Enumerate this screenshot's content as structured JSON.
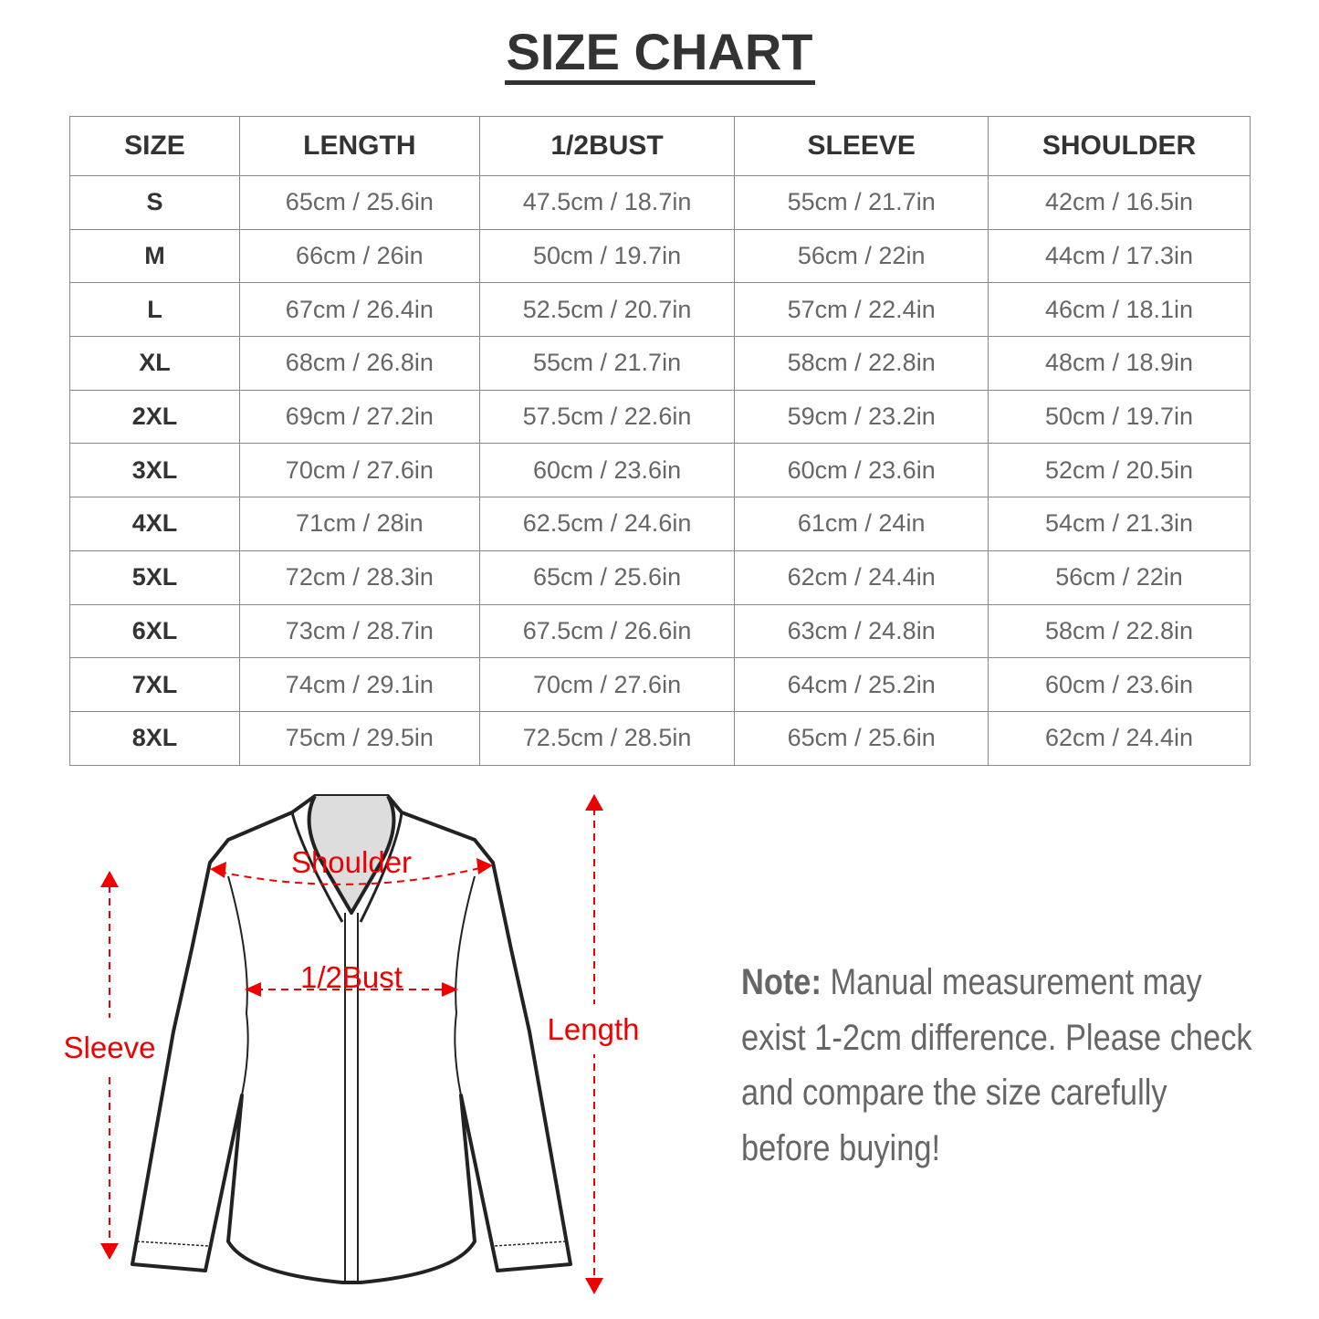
{
  "title": "SIZE CHART",
  "table": {
    "headers": [
      "SIZE",
      "LENGTH",
      "1/2BUST",
      "SLEEVE",
      "SHOULDER"
    ],
    "rows": [
      [
        "S",
        "65cm / 25.6in",
        "47.5cm / 18.7in",
        "55cm / 21.7in",
        "42cm / 16.5in"
      ],
      [
        "M",
        "66cm / 26in",
        "50cm / 19.7in",
        "56cm / 22in",
        "44cm / 17.3in"
      ],
      [
        "L",
        "67cm / 26.4in",
        "52.5cm / 20.7in",
        "57cm / 22.4in",
        "46cm / 18.1in"
      ],
      [
        "XL",
        "68cm / 26.8in",
        "55cm / 21.7in",
        "58cm / 22.8in",
        "48cm / 18.9in"
      ],
      [
        "2XL",
        "69cm / 27.2in",
        "57.5cm / 22.6in",
        "59cm / 23.2in",
        "50cm / 19.7in"
      ],
      [
        "3XL",
        "70cm / 27.6in",
        "60cm / 23.6in",
        "60cm / 23.6in",
        "52cm / 20.5in"
      ],
      [
        "4XL",
        "71cm / 28in",
        "62.5cm / 24.6in",
        "61cm / 24in",
        "54cm / 21.3in"
      ],
      [
        "5XL",
        "72cm / 28.3in",
        "65cm / 25.6in",
        "62cm / 24.4in",
        "56cm / 22in"
      ],
      [
        "6XL",
        "73cm / 28.7in",
        "67.5cm / 26.6in",
        "63cm / 24.8in",
        "58cm / 22.8in"
      ],
      [
        "7XL",
        "74cm / 29.1in",
        "70cm / 27.6in",
        "64cm / 25.2in",
        "60cm / 23.6in"
      ],
      [
        "8XL",
        "75cm / 29.5in",
        "72.5cm / 28.5in",
        "65cm / 25.6in",
        "62cm / 24.4in"
      ]
    ]
  },
  "diagram": {
    "shoulder": "Shoulder",
    "bust": "1/2Bust",
    "sleeve": "Sleeve",
    "length": "Length",
    "accent": "#e00000"
  },
  "note": {
    "label": "Note:",
    "text": " Manual measurement may exist 1-2cm difference. Please check and compare the size carefully before buying!"
  }
}
